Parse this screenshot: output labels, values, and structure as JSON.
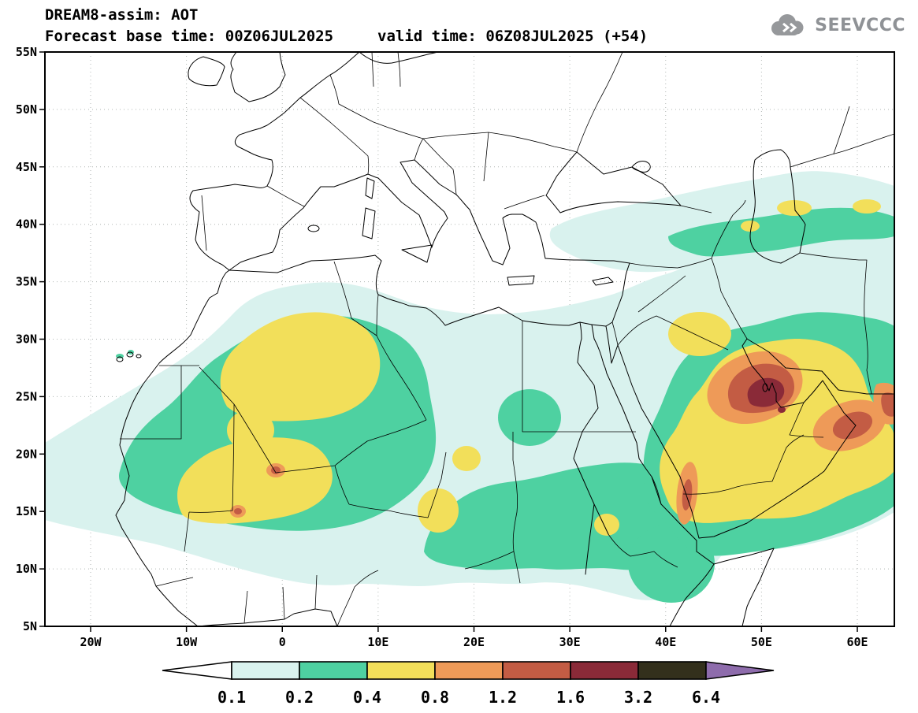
{
  "header": {
    "title": "DREAM8-assim: AOT",
    "base_time": "Forecast base time: 00Z06JUL2025",
    "valid_time": "valid time: 06Z08JUL2025 (+54)"
  },
  "logo": {
    "text": "SEEVCCC"
  },
  "axes": {
    "y_ticks": [
      "55N",
      "50N",
      "45N",
      "40N",
      "35N",
      "30N",
      "25N",
      "20N",
      "15N",
      "10N",
      "5N"
    ],
    "x_ticks": [
      "20W",
      "10W",
      "0",
      "10E",
      "20E",
      "30E",
      "40E",
      "50E",
      "60E"
    ]
  },
  "colorbar": {
    "labels": [
      "0.1",
      "0.2",
      "0.4",
      "0.8",
      "1.2",
      "1.6",
      "3.2",
      "6.4"
    ],
    "cell_colors": [
      "#d9f2ee",
      "#4ed1a1",
      "#f2df5a",
      "#ee9a58",
      "#c35c44",
      "#8a2a38",
      "#33301c"
    ],
    "left_arrow_color": "#ffffff",
    "right_arrow_color": "#8e6cac"
  },
  "map": {
    "parameter": "AOT",
    "fill_colors": {
      "0.1": "#d9f2ee",
      "0.2": "#4ed1a1",
      "0.4": "#f2df5a",
      "0.8": "#ee9a58",
      "1.2": "#c35c44",
      "1.6": "#8a2a38"
    }
  }
}
